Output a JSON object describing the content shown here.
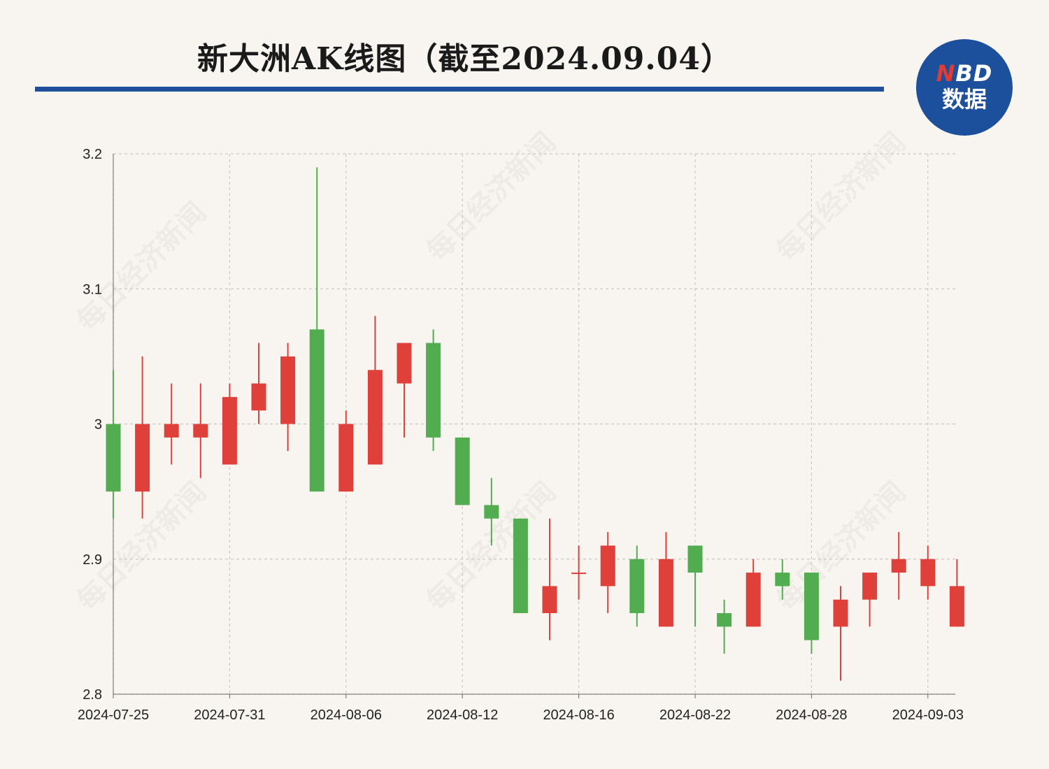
{
  "title": "新大洲AK线图（截至2024.09.04）",
  "logo": {
    "top_n": "N",
    "top_rest": "BD",
    "bottom": "数据"
  },
  "watermark": "每日经济新闻",
  "colors": {
    "up": "#e0403a",
    "down": "#52ad51",
    "rule": "#1f4e9a",
    "background": "#f8f5f0",
    "grid": "#c8c8c8"
  },
  "chart_data": {
    "type": "candlestick",
    "ylim": [
      2.8,
      3.2
    ],
    "yticks": [
      2.8,
      2.9,
      3,
      3.1,
      3.2
    ],
    "ytick_labels": [
      "2.8",
      "2.9",
      "3",
      "3.1",
      "3.2"
    ],
    "xtick_labels": [
      "2024-07-25",
      "2024-07-31",
      "2024-08-06",
      "2024-08-12",
      "2024-08-16",
      "2024-08-22",
      "2024-08-28",
      "2024-09-03"
    ],
    "xtick_index": [
      0,
      4,
      8,
      12,
      16,
      20,
      24,
      28
    ],
    "grid": true,
    "candles": [
      {
        "o": 3.0,
        "h": 3.04,
        "l": 2.93,
        "c": 2.95
      },
      {
        "o": 2.95,
        "h": 3.05,
        "l": 2.93,
        "c": 3.0
      },
      {
        "o": 2.99,
        "h": 3.03,
        "l": 2.97,
        "c": 3.0
      },
      {
        "o": 2.99,
        "h": 3.03,
        "l": 2.96,
        "c": 3.0
      },
      {
        "o": 2.97,
        "h": 3.03,
        "l": 2.97,
        "c": 3.02
      },
      {
        "o": 3.01,
        "h": 3.06,
        "l": 3.0,
        "c": 3.03
      },
      {
        "o": 3.0,
        "h": 3.06,
        "l": 2.98,
        "c": 3.05
      },
      {
        "o": 3.07,
        "h": 3.19,
        "l": 2.95,
        "c": 2.95
      },
      {
        "o": 2.95,
        "h": 3.01,
        "l": 2.95,
        "c": 3.0
      },
      {
        "o": 2.97,
        "h": 3.08,
        "l": 2.97,
        "c": 3.04
      },
      {
        "o": 3.03,
        "h": 3.06,
        "l": 2.99,
        "c": 3.06
      },
      {
        "o": 3.06,
        "h": 3.07,
        "l": 2.98,
        "c": 2.99
      },
      {
        "o": 2.99,
        "h": 2.99,
        "l": 2.94,
        "c": 2.94
      },
      {
        "o": 2.94,
        "h": 2.96,
        "l": 2.91,
        "c": 2.93
      },
      {
        "o": 2.93,
        "h": 2.93,
        "l": 2.86,
        "c": 2.86
      },
      {
        "o": 2.86,
        "h": 2.93,
        "l": 2.84,
        "c": 2.88
      },
      {
        "o": 2.89,
        "h": 2.91,
        "l": 2.87,
        "c": 2.89
      },
      {
        "o": 2.88,
        "h": 2.92,
        "l": 2.86,
        "c": 2.91
      },
      {
        "o": 2.9,
        "h": 2.91,
        "l": 2.85,
        "c": 2.86
      },
      {
        "o": 2.85,
        "h": 2.92,
        "l": 2.85,
        "c": 2.9
      },
      {
        "o": 2.91,
        "h": 2.91,
        "l": 2.85,
        "c": 2.89
      },
      {
        "o": 2.86,
        "h": 2.87,
        "l": 2.83,
        "c": 2.85
      },
      {
        "o": 2.85,
        "h": 2.9,
        "l": 2.85,
        "c": 2.89
      },
      {
        "o": 2.89,
        "h": 2.9,
        "l": 2.87,
        "c": 2.88
      },
      {
        "o": 2.89,
        "h": 2.89,
        "l": 2.83,
        "c": 2.84
      },
      {
        "o": 2.85,
        "h": 2.88,
        "l": 2.81,
        "c": 2.87
      },
      {
        "o": 2.87,
        "h": 2.89,
        "l": 2.85,
        "c": 2.89
      },
      {
        "o": 2.89,
        "h": 2.92,
        "l": 2.87,
        "c": 2.9
      },
      {
        "o": 2.88,
        "h": 2.91,
        "l": 2.87,
        "c": 2.9
      },
      {
        "o": 2.85,
        "h": 2.9,
        "l": 2.85,
        "c": 2.88
      }
    ]
  }
}
